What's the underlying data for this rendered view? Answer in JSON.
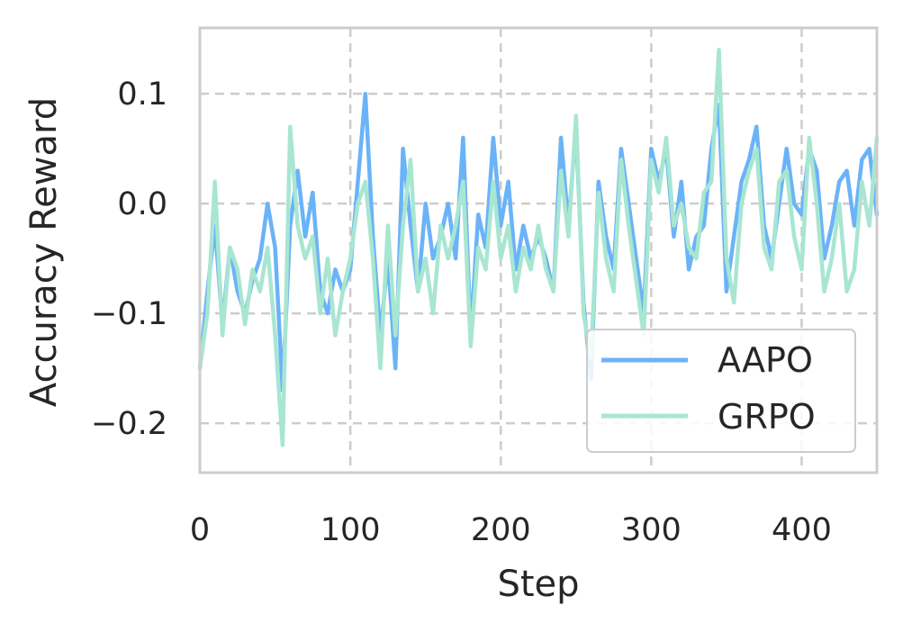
{
  "chart_data": {
    "type": "line",
    "xlabel": "Step",
    "ylabel": "Accuracy Reward",
    "xlim": [
      0,
      450
    ],
    "ylim": [
      -0.245,
      0.16
    ],
    "xticks": [
      0,
      100,
      200,
      300,
      400
    ],
    "xtick_labels": [
      "0",
      "100",
      "200",
      "300",
      "400"
    ],
    "yticks": [
      -0.2,
      -0.1,
      0.0,
      0.1
    ],
    "ytick_labels": [
      "−0.2",
      "−0.1",
      "0.0",
      "0.1"
    ],
    "grid": true,
    "legend_position": "lower-right",
    "series": [
      {
        "name": "AAPO",
        "color": "#6bb3f8",
        "x": [
          0,
          5,
          10,
          15,
          20,
          25,
          30,
          35,
          40,
          45,
          50,
          55,
          60,
          65,
          70,
          75,
          80,
          85,
          90,
          95,
          100,
          105,
          110,
          115,
          120,
          125,
          130,
          135,
          140,
          145,
          150,
          155,
          160,
          165,
          170,
          175,
          180,
          185,
          190,
          195,
          200,
          205,
          210,
          215,
          220,
          225,
          230,
          235,
          240,
          245,
          250,
          255,
          260,
          265,
          270,
          275,
          280,
          285,
          290,
          295,
          300,
          305,
          310,
          315,
          320,
          325,
          330,
          335,
          340,
          345,
          350,
          355,
          360,
          365,
          370,
          375,
          380,
          385,
          390,
          395,
          400,
          405,
          410,
          415,
          420,
          425,
          430,
          435,
          440,
          445,
          450
        ],
        "y": [
          -0.15,
          -0.08,
          -0.02,
          -0.11,
          -0.04,
          -0.08,
          -0.1,
          -0.07,
          -0.05,
          0.0,
          -0.04,
          -0.17,
          -0.02,
          0.03,
          -0.03,
          0.01,
          -0.08,
          -0.1,
          -0.06,
          -0.08,
          -0.06,
          0.02,
          0.1,
          -0.03,
          -0.12,
          -0.05,
          -0.15,
          0.05,
          -0.02,
          -0.08,
          0.0,
          -0.05,
          -0.03,
          0.0,
          -0.05,
          0.06,
          -0.12,
          -0.01,
          -0.04,
          0.06,
          -0.02,
          0.02,
          -0.06,
          -0.02,
          -0.05,
          -0.03,
          -0.05,
          -0.08,
          0.06,
          -0.02,
          0.07,
          -0.09,
          -0.16,
          0.02,
          -0.03,
          -0.06,
          0.05,
          0.0,
          -0.05,
          -0.1,
          0.05,
          0.02,
          0.05,
          -0.03,
          0.02,
          -0.06,
          -0.03,
          -0.02,
          0.05,
          0.09,
          -0.08,
          -0.03,
          0.02,
          0.04,
          0.07,
          -0.02,
          -0.05,
          0.0,
          0.05,
          0.0,
          -0.01,
          0.05,
          0.03,
          -0.05,
          -0.02,
          0.02,
          0.03,
          -0.02,
          0.04,
          0.05,
          -0.01
        ]
      },
      {
        "name": "GRPO",
        "color": "#a8e6d2",
        "x": [
          0,
          5,
          10,
          15,
          20,
          25,
          30,
          35,
          40,
          45,
          50,
          55,
          60,
          65,
          70,
          75,
          80,
          85,
          90,
          95,
          100,
          105,
          110,
          115,
          120,
          125,
          130,
          135,
          140,
          145,
          150,
          155,
          160,
          165,
          170,
          175,
          180,
          185,
          190,
          195,
          200,
          205,
          210,
          215,
          220,
          225,
          230,
          235,
          240,
          245,
          250,
          255,
          260,
          265,
          270,
          275,
          280,
          285,
          290,
          295,
          300,
          305,
          310,
          315,
          320,
          325,
          330,
          335,
          340,
          345,
          350,
          355,
          360,
          365,
          370,
          375,
          380,
          385,
          390,
          395,
          400,
          405,
          410,
          415,
          420,
          425,
          430,
          435,
          440,
          445,
          450
        ],
        "y": [
          -0.15,
          -0.1,
          0.02,
          -0.12,
          -0.04,
          -0.06,
          -0.11,
          -0.06,
          -0.08,
          -0.04,
          -0.12,
          -0.22,
          0.07,
          -0.02,
          -0.05,
          -0.03,
          -0.1,
          -0.05,
          -0.12,
          -0.08,
          -0.05,
          0.0,
          0.02,
          -0.05,
          -0.15,
          -0.02,
          -0.12,
          -0.02,
          0.04,
          -0.08,
          -0.05,
          -0.1,
          -0.02,
          -0.05,
          -0.02,
          0.02,
          -0.13,
          -0.04,
          -0.06,
          0.02,
          -0.05,
          -0.02,
          -0.08,
          -0.04,
          -0.06,
          -0.02,
          -0.06,
          -0.08,
          0.03,
          -0.03,
          0.08,
          -0.1,
          -0.14,
          0.01,
          -0.05,
          -0.08,
          0.04,
          -0.02,
          -0.07,
          -0.12,
          0.04,
          0.01,
          0.06,
          -0.02,
          0.0,
          -0.04,
          -0.05,
          0.01,
          0.02,
          0.14,
          -0.05,
          -0.09,
          0.0,
          0.03,
          0.05,
          -0.04,
          -0.06,
          0.02,
          0.03,
          -0.03,
          -0.06,
          0.06,
          0.0,
          -0.08,
          -0.05,
          0.0,
          -0.08,
          -0.06,
          0.02,
          -0.02,
          0.06
        ]
      }
    ]
  }
}
